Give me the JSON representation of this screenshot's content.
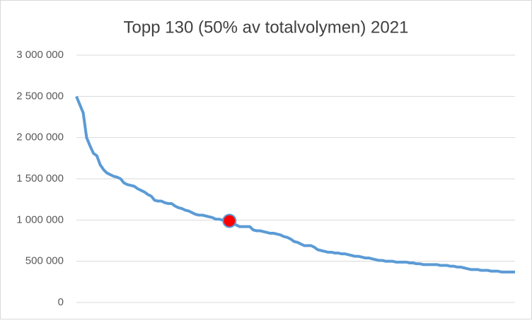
{
  "chart_data": {
    "type": "line",
    "title": "Topp 130 (50% av totalvolymen) 2021",
    "categories": [
      null,
      null,
      null,
      null,
      null,
      null,
      null,
      null,
      null,
      null,
      null,
      null,
      null,
      null,
      null,
      null,
      null,
      null,
      null,
      null,
      null,
      null,
      null,
      null,
      null,
      null,
      null,
      null,
      null,
      null,
      null,
      null,
      null,
      null,
      null,
      null,
      null,
      null,
      null,
      null,
      null,
      null,
      null,
      null,
      null,
      null,
      null,
      null,
      null,
      null,
      null,
      null,
      null,
      null,
      null,
      null,
      null,
      null,
      null,
      null,
      null,
      null,
      null,
      null,
      null,
      null,
      null,
      null,
      null,
      null,
      null,
      null,
      null,
      null,
      null,
      null,
      null,
      null,
      null,
      null,
      null,
      null,
      null,
      null,
      null,
      null,
      null,
      null,
      null,
      null,
      null,
      null,
      null,
      null,
      null,
      null,
      null,
      null,
      null,
      null,
      null,
      null,
      null,
      null,
      null,
      null,
      null,
      null,
      null,
      null,
      null,
      null,
      null,
      null,
      null,
      null,
      null,
      null,
      null,
      null,
      null,
      null,
      null,
      null,
      null,
      null,
      null,
      null,
      null,
      null
    ],
    "series": [
      {
        "color": "#5b9bd5",
        "values": [
          2500000,
          2400000,
          2300000,
          2000000,
          1900000,
          1810000,
          1780000,
          1670000,
          1610000,
          1570000,
          1550000,
          1530000,
          1520000,
          1500000,
          1450000,
          1430000,
          1420000,
          1410000,
          1380000,
          1360000,
          1340000,
          1310000,
          1290000,
          1240000,
          1230000,
          1230000,
          1210000,
          1200000,
          1200000,
          1170000,
          1150000,
          1140000,
          1120000,
          1110000,
          1090000,
          1070000,
          1060000,
          1060000,
          1050000,
          1040000,
          1030000,
          1010000,
          1010000,
          1000000,
          1000000,
          990000,
          960000,
          940000,
          920000,
          920000,
          920000,
          920000,
          880000,
          870000,
          870000,
          860000,
          850000,
          840000,
          840000,
          830000,
          820000,
          800000,
          790000,
          770000,
          740000,
          730000,
          710000,
          690000,
          690000,
          690000,
          670000,
          640000,
          630000,
          620000,
          610000,
          610000,
          600000,
          600000,
          590000,
          590000,
          580000,
          570000,
          560000,
          560000,
          550000,
          540000,
          540000,
          530000,
          520000,
          510000,
          510000,
          500000,
          500000,
          500000,
          490000,
          490000,
          490000,
          490000,
          480000,
          480000,
          470000,
          470000,
          460000,
          460000,
          460000,
          460000,
          460000,
          450000,
          450000,
          450000,
          440000,
          440000,
          430000,
          430000,
          420000,
          410000,
          400000,
          400000,
          400000,
          390000,
          390000,
          390000,
          380000,
          380000,
          380000,
          370000,
          370000,
          370000,
          370000,
          370000
        ]
      }
    ],
    "highlight": {
      "index": 45,
      "color": "#ff0000"
    },
    "ylim": [
      0,
      3000000
    ],
    "yticks": [
      0,
      {
        "value": 500000,
        "label": "500 000"
      },
      {
        "value": 1000000,
        "label": "1 000 000"
      },
      {
        "value": 1500000,
        "label": "1 500 000"
      },
      {
        "value": 2000000,
        "label": "2 000 000"
      },
      {
        "value": 2500000,
        "label": "2 500 000"
      },
      {
        "value": 3000000,
        "label": "3 000 000"
      }
    ],
    "grid": true
  }
}
